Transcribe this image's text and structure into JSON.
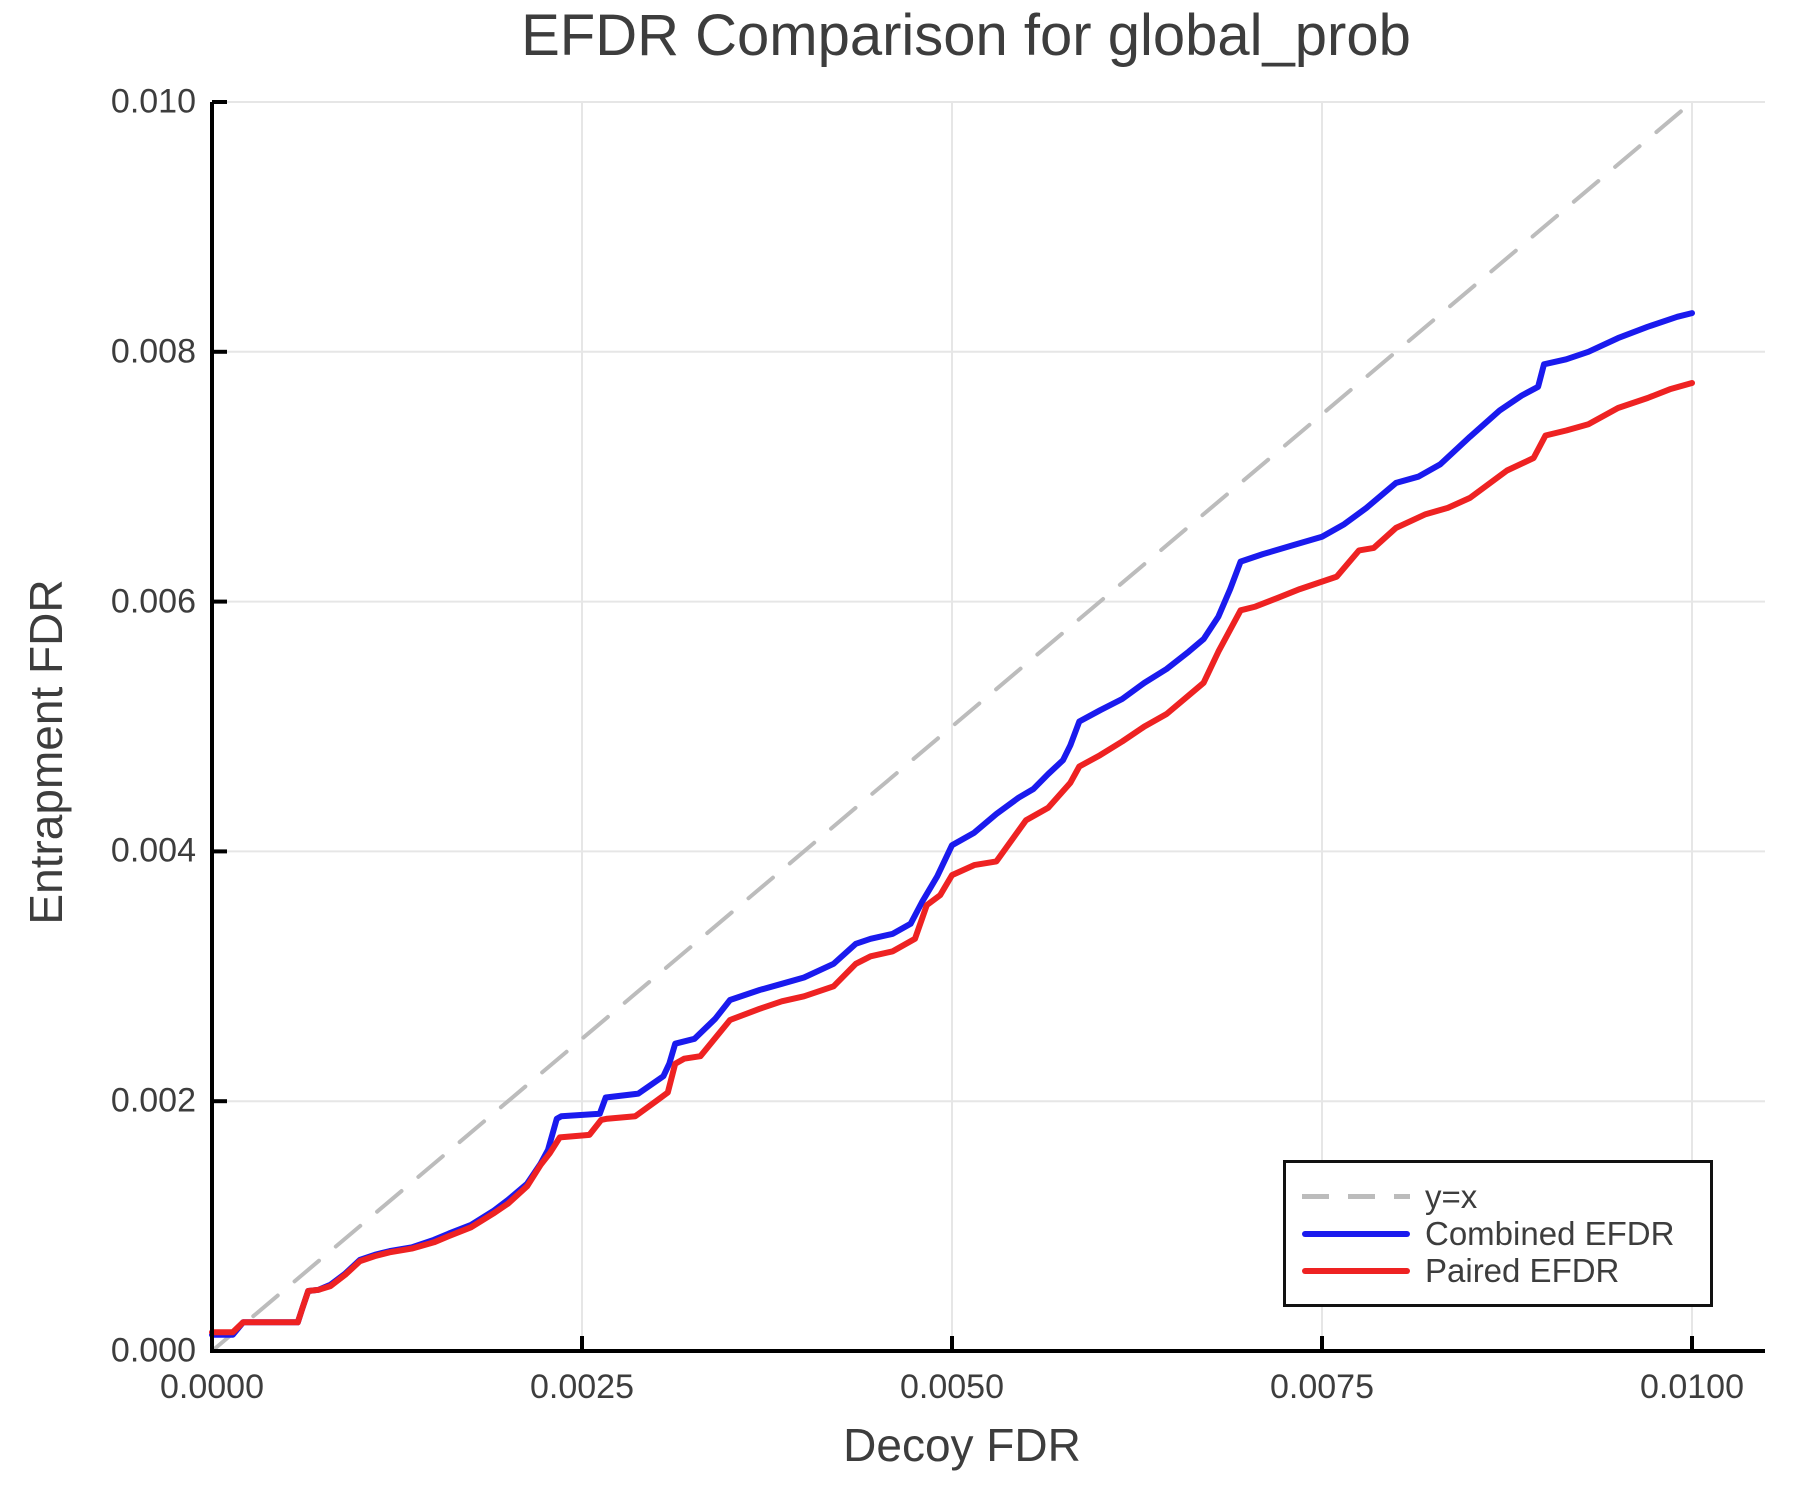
{
  "title": "EFDR Comparison for global_prob",
  "colors": {
    "background": "#ffffff",
    "text": "#3d3d3d",
    "grid": "#e6e6e6",
    "spine": "#000000",
    "identity_line": "#bcbcbc",
    "combined_line": "#1a1aee",
    "paired_line": "#ee2222",
    "legend_border": "#111111"
  },
  "axes": {
    "x_label": "Decoy FDR",
    "y_label": "Entrapment FDR",
    "x_tick_labels": [
      "0.0000",
      "0.0025",
      "0.0050",
      "0.0075",
      "0.0100"
    ],
    "x_tick_values": [
      0,
      0.0025,
      0.005,
      0.0075,
      0.01
    ],
    "y_tick_labels": [
      "0.000",
      "0.002",
      "0.004",
      "0.006",
      "0.008",
      "0.010"
    ],
    "y_tick_values": [
      0,
      0.002,
      0.004,
      0.006,
      0.008,
      0.01
    ]
  },
  "legend": {
    "items": [
      {
        "label": "y=x",
        "series_index": 0
      },
      {
        "label": "Combined EFDR",
        "series_index": 1
      },
      {
        "label": "Paired EFDR",
        "series_index": 2
      }
    ]
  },
  "chart_data": {
    "type": "line",
    "title": "EFDR Comparison for global_prob",
    "xlabel": "Decoy FDR",
    "ylabel": "Entrapment FDR",
    "xlim": [
      0,
      0.01
    ],
    "ylim": [
      0,
      0.01
    ],
    "grid": true,
    "legend_position": "lower right",
    "series": [
      {
        "name": "y=x",
        "color": "#bcbcbc",
        "style": "dashed",
        "width": 4,
        "x": [
          0,
          0.01
        ],
        "y": [
          0,
          0.01
        ]
      },
      {
        "name": "Combined EFDR",
        "color": "#1a1aee",
        "style": "solid",
        "width": 6,
        "x": [
          0,
          0.00014,
          0.00021,
          0.00058,
          0.00061,
          0.00065,
          0.00072,
          0.0008,
          0.0009,
          0.001,
          0.0011,
          0.0012,
          0.00135,
          0.0015,
          0.0016,
          0.00175,
          0.0019,
          0.002,
          0.00213,
          0.00222,
          0.00227,
          0.00233,
          0.00236,
          0.00262,
          0.00266,
          0.00288,
          0.00305,
          0.00309,
          0.00313,
          0.00326,
          0.0034,
          0.0035,
          0.0037,
          0.00385,
          0.004,
          0.0042,
          0.00435,
          0.00445,
          0.0046,
          0.00472,
          0.0048,
          0.0049,
          0.005,
          0.00515,
          0.0053,
          0.00545,
          0.00555,
          0.00565,
          0.00575,
          0.0058,
          0.00586,
          0.006,
          0.00615,
          0.0063,
          0.00645,
          0.0066,
          0.0067,
          0.0068,
          0.00688,
          0.00695,
          0.0071,
          0.0073,
          0.0075,
          0.00765,
          0.0078,
          0.008,
          0.00815,
          0.0083,
          0.0085,
          0.0087,
          0.00885,
          0.00896,
          0.009,
          0.00915,
          0.0093,
          0.0095,
          0.0097,
          0.0099,
          0.01
        ],
        "y": [
          0.00013,
          0.00013,
          0.00023,
          0.00023,
          0.00034,
          0.00048,
          0.00049,
          0.00053,
          0.00062,
          0.00073,
          0.00077,
          0.0008,
          0.00083,
          0.00089,
          0.00094,
          0.00101,
          0.00112,
          0.00121,
          0.00134,
          0.0015,
          0.00161,
          0.00186,
          0.00188,
          0.0019,
          0.00203,
          0.00206,
          0.0022,
          0.0023,
          0.00246,
          0.0025,
          0.00266,
          0.00281,
          0.00289,
          0.00294,
          0.00299,
          0.0031,
          0.00326,
          0.0033,
          0.00334,
          0.00342,
          0.0036,
          0.0038,
          0.00405,
          0.00415,
          0.0043,
          0.00443,
          0.0045,
          0.00462,
          0.00473,
          0.00485,
          0.00504,
          0.00513,
          0.00522,
          0.00535,
          0.00546,
          0.0056,
          0.0057,
          0.00588,
          0.0061,
          0.00632,
          0.00638,
          0.00645,
          0.00652,
          0.00662,
          0.00675,
          0.00695,
          0.007,
          0.0071,
          0.00732,
          0.00753,
          0.00765,
          0.00772,
          0.0079,
          0.00794,
          0.008,
          0.00811,
          0.0082,
          0.00828,
          0.00831
        ]
      },
      {
        "name": "Paired EFDR",
        "color": "#ee2222",
        "style": "solid",
        "width": 6,
        "x": [
          0,
          0.00014,
          0.00021,
          0.00058,
          0.00061,
          0.00065,
          0.00072,
          0.0008,
          0.0009,
          0.001,
          0.0011,
          0.0012,
          0.00135,
          0.0015,
          0.0016,
          0.00175,
          0.0019,
          0.002,
          0.00213,
          0.00222,
          0.00228,
          0.00235,
          0.00255,
          0.00263,
          0.00267,
          0.00286,
          0.003,
          0.00308,
          0.00313,
          0.00319,
          0.0033,
          0.0035,
          0.0037,
          0.00385,
          0.004,
          0.0042,
          0.00435,
          0.00445,
          0.0046,
          0.00475,
          0.00483,
          0.00492,
          0.005,
          0.00515,
          0.0053,
          0.0055,
          0.00565,
          0.0058,
          0.00586,
          0.006,
          0.00615,
          0.0063,
          0.00645,
          0.0066,
          0.0067,
          0.0068,
          0.00695,
          0.00705,
          0.0072,
          0.00735,
          0.0075,
          0.0076,
          0.00775,
          0.00785,
          0.008,
          0.0082,
          0.00835,
          0.0085,
          0.00875,
          0.00893,
          0.00901,
          0.00915,
          0.0093,
          0.0095,
          0.0097,
          0.00985,
          0.01
        ],
        "y": [
          0.00015,
          0.00015,
          0.00023,
          0.00023,
          0.00034,
          0.00048,
          0.00049,
          0.00052,
          0.00061,
          0.00072,
          0.00076,
          0.00079,
          0.00082,
          0.00087,
          0.00092,
          0.00099,
          0.0011,
          0.00118,
          0.00132,
          0.00149,
          0.00158,
          0.00171,
          0.00173,
          0.00185,
          0.00186,
          0.00188,
          0.002,
          0.00207,
          0.0023,
          0.00234,
          0.00236,
          0.00265,
          0.00274,
          0.0028,
          0.00284,
          0.00292,
          0.0031,
          0.00316,
          0.0032,
          0.0033,
          0.00357,
          0.00365,
          0.00381,
          0.00389,
          0.00392,
          0.00425,
          0.00435,
          0.00455,
          0.00468,
          0.00477,
          0.00488,
          0.005,
          0.0051,
          0.00525,
          0.00535,
          0.0056,
          0.00593,
          0.00596,
          0.00603,
          0.0061,
          0.00616,
          0.0062,
          0.00641,
          0.00643,
          0.00659,
          0.0067,
          0.00675,
          0.00683,
          0.00705,
          0.00715,
          0.00733,
          0.00737,
          0.00742,
          0.00755,
          0.00763,
          0.0077,
          0.00775
        ]
      }
    ]
  }
}
